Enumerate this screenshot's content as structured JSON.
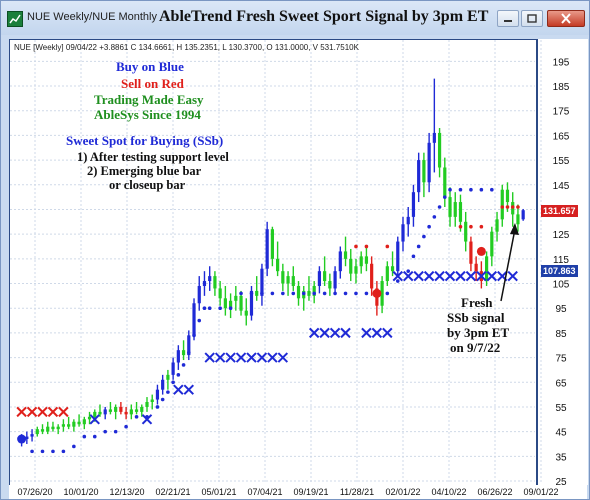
{
  "window": {
    "tab_title": "NUE Weekly/NUE Monthly",
    "chart_title": "AbleTrend Fresh Sweet Sport Signal by 3pm ET"
  },
  "ohlc_readout": "NUE [Weekly] 09/04/22 +3.8861 C 134.6661, H 135.2351, L 130.3700, O 131.0000, V 531.7510K",
  "legend": {
    "buy": "Buy on Blue",
    "sell": "Sell on Red",
    "tagline": "Trading Made Easy",
    "since": "AbleSys Since 1994",
    "buy_color": "#1f2ad6",
    "sell_color": "#e0201b",
    "green_color": "#1f8f1f"
  },
  "notes": {
    "heading": "Sweet Spot for Buying (SSb)",
    "line1": "1) After testing support level",
    "line2": "2) Emerging blue bar",
    "line3": "or closeup bar"
  },
  "annotation": {
    "line1": "Fresh",
    "line2": "SSb signal",
    "line3": "by 3pm ET",
    "line4": "on 9/7/22"
  },
  "price_tags": [
    {
      "value": "131.657",
      "color": "#d62020"
    },
    {
      "value": "107.863",
      "color": "#1f3fa8"
    }
  ],
  "chart_data": {
    "type": "bar",
    "title": "AbleTrend Fresh Sweet Sport Signal by 3pm ET",
    "ylim": [
      25,
      200
    ],
    "y_ticks": [
      195,
      185,
      175,
      165,
      155,
      145,
      135,
      125,
      115,
      105,
      95,
      85,
      75,
      65,
      55,
      45,
      35,
      25
    ],
    "x_ticks": [
      "07/26/20",
      "10/01/20",
      "12/13/20",
      "02/21/21",
      "05/01/21",
      "07/04/21",
      "09/19/21",
      "11/28/21",
      "02/01/22",
      "04/10/22",
      "06/26/22",
      "09/01/22"
    ],
    "grid": true,
    "series_colors": {
      "blue": "#1f2ad6",
      "red": "#e0201b",
      "green": "#22cc22"
    },
    "bars": [
      {
        "i": 0,
        "o": 41,
        "h": 44,
        "l": 39,
        "c": 42,
        "col": "blue"
      },
      {
        "i": 1,
        "o": 42,
        "h": 45,
        "l": 40,
        "c": 43,
        "col": "blue"
      },
      {
        "i": 2,
        "o": 43,
        "h": 46,
        "l": 41,
        "c": 44,
        "col": "blue"
      },
      {
        "i": 3,
        "o": 44,
        "h": 47,
        "l": 43,
        "c": 46,
        "col": "green"
      },
      {
        "i": 4,
        "o": 46,
        "h": 48,
        "l": 44,
        "c": 45,
        "col": "green"
      },
      {
        "i": 5,
        "o": 45,
        "h": 49,
        "l": 44,
        "c": 47,
        "col": "green"
      },
      {
        "i": 6,
        "o": 47,
        "h": 49,
        "l": 45,
        "c": 46,
        "col": "green"
      },
      {
        "i": 7,
        "o": 46,
        "h": 48,
        "l": 44,
        "c": 47,
        "col": "green"
      },
      {
        "i": 8,
        "o": 47,
        "h": 50,
        "l": 45,
        "c": 48,
        "col": "green"
      },
      {
        "i": 9,
        "o": 48,
        "h": 51,
        "l": 46,
        "c": 47,
        "col": "green"
      },
      {
        "i": 10,
        "o": 47,
        "h": 50,
        "l": 45,
        "c": 49,
        "col": "green"
      },
      {
        "i": 11,
        "o": 49,
        "h": 52,
        "l": 47,
        "c": 48,
        "col": "green"
      },
      {
        "i": 12,
        "o": 48,
        "h": 51,
        "l": 46,
        "c": 50,
        "col": "green"
      },
      {
        "i": 13,
        "o": 50,
        "h": 53,
        "l": 48,
        "c": 51,
        "col": "green"
      },
      {
        "i": 14,
        "o": 51,
        "h": 54,
        "l": 49,
        "c": 53,
        "col": "green"
      },
      {
        "i": 15,
        "o": 53,
        "h": 56,
        "l": 51,
        "c": 52,
        "col": "green"
      },
      {
        "i": 16,
        "o": 52,
        "h": 55,
        "l": 50,
        "c": 54,
        "col": "blue"
      },
      {
        "i": 17,
        "o": 54,
        "h": 57,
        "l": 52,
        "c": 53,
        "col": "green"
      },
      {
        "i": 18,
        "o": 53,
        "h": 56,
        "l": 50,
        "c": 55,
        "col": "green"
      },
      {
        "i": 19,
        "o": 55,
        "h": 57,
        "l": 52,
        "c": 53,
        "col": "red"
      },
      {
        "i": 20,
        "o": 53,
        "h": 55,
        "l": 50,
        "c": 52,
        "col": "red"
      },
      {
        "i": 21,
        "o": 52,
        "h": 56,
        "l": 50,
        "c": 54,
        "col": "green"
      },
      {
        "i": 22,
        "o": 54,
        "h": 57,
        "l": 52,
        "c": 53,
        "col": "green"
      },
      {
        "i": 23,
        "o": 53,
        "h": 56,
        "l": 51,
        "c": 55,
        "col": "green"
      },
      {
        "i": 24,
        "o": 55,
        "h": 59,
        "l": 53,
        "c": 57,
        "col": "green"
      },
      {
        "i": 25,
        "o": 57,
        "h": 60,
        "l": 54,
        "c": 58,
        "col": "green"
      },
      {
        "i": 26,
        "o": 58,
        "h": 64,
        "l": 56,
        "c": 62,
        "col": "blue"
      },
      {
        "i": 27,
        "o": 62,
        "h": 68,
        "l": 60,
        "c": 66,
        "col": "blue"
      },
      {
        "i": 28,
        "o": 66,
        "h": 70,
        "l": 62,
        "c": 68,
        "col": "green"
      },
      {
        "i": 29,
        "o": 68,
        "h": 75,
        "l": 66,
        "c": 73,
        "col": "blue"
      },
      {
        "i": 30,
        "o": 73,
        "h": 80,
        "l": 70,
        "c": 78,
        "col": "blue"
      },
      {
        "i": 31,
        "o": 78,
        "h": 82,
        "l": 74,
        "c": 76,
        "col": "green"
      },
      {
        "i": 32,
        "o": 76,
        "h": 86,
        "l": 74,
        "c": 84,
        "col": "blue"
      },
      {
        "i": 33,
        "o": 84,
        "h": 99,
        "l": 82,
        "c": 97,
        "col": "blue"
      },
      {
        "i": 34,
        "o": 97,
        "h": 108,
        "l": 94,
        "c": 104,
        "col": "blue"
      },
      {
        "i": 35,
        "o": 104,
        "h": 110,
        "l": 100,
        "c": 106,
        "col": "blue"
      },
      {
        "i": 36,
        "o": 106,
        "h": 112,
        "l": 102,
        "c": 108,
        "col": "blue"
      },
      {
        "i": 37,
        "o": 108,
        "h": 110,
        "l": 100,
        "c": 103,
        "col": "green"
      },
      {
        "i": 38,
        "o": 103,
        "h": 106,
        "l": 96,
        "c": 99,
        "col": "green"
      },
      {
        "i": 39,
        "o": 99,
        "h": 104,
        "l": 92,
        "c": 95,
        "col": "green"
      },
      {
        "i": 40,
        "o": 95,
        "h": 101,
        "l": 91,
        "c": 98,
        "col": "green"
      },
      {
        "i": 41,
        "o": 98,
        "h": 104,
        "l": 94,
        "c": 100,
        "col": "green"
      },
      {
        "i": 42,
        "o": 100,
        "h": 102,
        "l": 92,
        "c": 94,
        "col": "green"
      },
      {
        "i": 43,
        "o": 94,
        "h": 99,
        "l": 88,
        "c": 92,
        "col": "green"
      },
      {
        "i": 44,
        "o": 92,
        "h": 104,
        "l": 90,
        "c": 102,
        "col": "blue"
      },
      {
        "i": 45,
        "o": 102,
        "h": 108,
        "l": 98,
        "c": 100,
        "col": "green"
      },
      {
        "i": 46,
        "o": 100,
        "h": 113,
        "l": 96,
        "c": 111,
        "col": "blue"
      },
      {
        "i": 47,
        "o": 111,
        "h": 130,
        "l": 108,
        "c": 127,
        "col": "blue"
      },
      {
        "i": 48,
        "o": 127,
        "h": 128,
        "l": 112,
        "c": 115,
        "col": "green"
      },
      {
        "i": 49,
        "o": 115,
        "h": 122,
        "l": 108,
        "c": 110,
        "col": "green"
      },
      {
        "i": 50,
        "o": 110,
        "h": 113,
        "l": 102,
        "c": 105,
        "col": "green"
      },
      {
        "i": 51,
        "o": 105,
        "h": 110,
        "l": 100,
        "c": 108,
        "col": "green"
      },
      {
        "i": 52,
        "o": 108,
        "h": 112,
        "l": 102,
        "c": 104,
        "col": "green"
      },
      {
        "i": 53,
        "o": 104,
        "h": 106,
        "l": 96,
        "c": 99,
        "col": "green"
      },
      {
        "i": 54,
        "o": 99,
        "h": 104,
        "l": 94,
        "c": 102,
        "col": "green"
      },
      {
        "i": 55,
        "o": 102,
        "h": 108,
        "l": 98,
        "c": 100,
        "col": "green"
      },
      {
        "i": 56,
        "o": 100,
        "h": 106,
        "l": 97,
        "c": 104,
        "col": "green"
      },
      {
        "i": 57,
        "o": 104,
        "h": 112,
        "l": 101,
        "c": 110,
        "col": "blue"
      },
      {
        "i": 58,
        "o": 110,
        "h": 116,
        "l": 104,
        "c": 106,
        "col": "green"
      },
      {
        "i": 59,
        "o": 106,
        "h": 109,
        "l": 100,
        "c": 103,
        "col": "green"
      },
      {
        "i": 60,
        "o": 103,
        "h": 112,
        "l": 101,
        "c": 110,
        "col": "blue"
      },
      {
        "i": 61,
        "o": 110,
        "h": 120,
        "l": 107,
        "c": 118,
        "col": "blue"
      },
      {
        "i": 62,
        "o": 118,
        "h": 124,
        "l": 112,
        "c": 115,
        "col": "green"
      },
      {
        "i": 63,
        "o": 115,
        "h": 119,
        "l": 106,
        "c": 109,
        "col": "green"
      },
      {
        "i": 64,
        "o": 109,
        "h": 115,
        "l": 105,
        "c": 112,
        "col": "green"
      },
      {
        "i": 65,
        "o": 112,
        "h": 118,
        "l": 109,
        "c": 116,
        "col": "green"
      },
      {
        "i": 66,
        "o": 116,
        "h": 120,
        "l": 110,
        "c": 113,
        "col": "green"
      },
      {
        "i": 67,
        "o": 113,
        "h": 116,
        "l": 100,
        "c": 103,
        "col": "red"
      },
      {
        "i": 68,
        "o": 103,
        "h": 106,
        "l": 92,
        "c": 96,
        "col": "red"
      },
      {
        "i": 69,
        "o": 96,
        "h": 108,
        "l": 93,
        "c": 106,
        "col": "green"
      },
      {
        "i": 70,
        "o": 106,
        "h": 114,
        "l": 104,
        "c": 112,
        "col": "green"
      },
      {
        "i": 71,
        "o": 112,
        "h": 118,
        "l": 108,
        "c": 110,
        "col": "green"
      },
      {
        "i": 72,
        "o": 110,
        "h": 124,
        "l": 108,
        "c": 122,
        "col": "blue"
      },
      {
        "i": 73,
        "o": 122,
        "h": 132,
        "l": 118,
        "c": 129,
        "col": "blue"
      },
      {
        "i": 74,
        "o": 129,
        "h": 136,
        "l": 124,
        "c": 132,
        "col": "blue"
      },
      {
        "i": 75,
        "o": 132,
        "h": 145,
        "l": 128,
        "c": 142,
        "col": "blue"
      },
      {
        "i": 76,
        "o": 142,
        "h": 158,
        "l": 138,
        "c": 155,
        "col": "blue"
      },
      {
        "i": 77,
        "o": 155,
        "h": 158,
        "l": 140,
        "c": 146,
        "col": "green"
      },
      {
        "i": 78,
        "o": 146,
        "h": 166,
        "l": 142,
        "c": 162,
        "col": "blue"
      },
      {
        "i": 79,
        "o": 162,
        "h": 188,
        "l": 150,
        "c": 166,
        "col": "blue"
      },
      {
        "i": 80,
        "o": 166,
        "h": 168,
        "l": 148,
        "c": 152,
        "col": "green"
      },
      {
        "i": 81,
        "o": 152,
        "h": 156,
        "l": 136,
        "c": 140,
        "col": "green"
      },
      {
        "i": 82,
        "o": 140,
        "h": 144,
        "l": 128,
        "c": 132,
        "col": "green"
      },
      {
        "i": 83,
        "o": 132,
        "h": 142,
        "l": 128,
        "c": 138,
        "col": "green"
      },
      {
        "i": 84,
        "o": 138,
        "h": 141,
        "l": 126,
        "c": 130,
        "col": "green"
      },
      {
        "i": 85,
        "o": 130,
        "h": 134,
        "l": 118,
        "c": 122,
        "col": "green"
      },
      {
        "i": 86,
        "o": 122,
        "h": 124,
        "l": 110,
        "c": 113,
        "col": "red"
      },
      {
        "i": 87,
        "o": 113,
        "h": 116,
        "l": 106,
        "c": 110,
        "col": "red"
      },
      {
        "i": 88,
        "o": 110,
        "h": 114,
        "l": 103,
        "c": 106,
        "col": "red"
      },
      {
        "i": 89,
        "o": 106,
        "h": 118,
        "l": 104,
        "c": 116,
        "col": "green"
      },
      {
        "i": 90,
        "o": 116,
        "h": 128,
        "l": 112,
        "c": 126,
        "col": "green"
      },
      {
        "i": 91,
        "o": 126,
        "h": 134,
        "l": 122,
        "c": 131,
        "col": "green"
      },
      {
        "i": 92,
        "o": 131,
        "h": 145,
        "l": 128,
        "c": 143,
        "col": "green"
      },
      {
        "i": 93,
        "o": 143,
        "h": 146,
        "l": 134,
        "c": 138,
        "col": "green"
      },
      {
        "i": 94,
        "o": 138,
        "h": 142,
        "l": 128,
        "c": 133,
        "col": "green"
      },
      {
        "i": 95,
        "o": 133,
        "h": 137,
        "l": 126,
        "c": 129,
        "col": "green"
      },
      {
        "i": 96,
        "o": 131,
        "h": 135.2,
        "l": 130.4,
        "c": 134.7,
        "col": "blue"
      }
    ],
    "buy_dots": [
      [
        2,
        37
      ],
      [
        4,
        37
      ],
      [
        6,
        37
      ],
      [
        8,
        37
      ],
      [
        10,
        39
      ],
      [
        12,
        43
      ],
      [
        14,
        43
      ],
      [
        16,
        45
      ],
      [
        18,
        45
      ],
      [
        20,
        47
      ],
      [
        22,
        51
      ],
      [
        24,
        51
      ],
      [
        26,
        55
      ],
      [
        27,
        58
      ],
      [
        28,
        61
      ],
      [
        29,
        65
      ],
      [
        30,
        68
      ],
      [
        31,
        72
      ],
      [
        32,
        77
      ],
      [
        33,
        84
      ],
      [
        34,
        90
      ],
      [
        35,
        95
      ],
      [
        36,
        95
      ],
      [
        38,
        95
      ],
      [
        40,
        95
      ],
      [
        42,
        101
      ],
      [
        44,
        101
      ],
      [
        46,
        101
      ],
      [
        48,
        101
      ],
      [
        50,
        101
      ],
      [
        52,
        101
      ],
      [
        54,
        101
      ],
      [
        56,
        101
      ],
      [
        58,
        101
      ],
      [
        60,
        101
      ],
      [
        62,
        101
      ],
      [
        64,
        101
      ],
      [
        66,
        101
      ],
      [
        70,
        101
      ],
      [
        72,
        106
      ],
      [
        74,
        110
      ],
      [
        75,
        116
      ],
      [
        76,
        120
      ],
      [
        77,
        124
      ],
      [
        78,
        128
      ],
      [
        79,
        132
      ],
      [
        80,
        136
      ],
      [
        81,
        140
      ],
      [
        82,
        143
      ],
      [
        84,
        143
      ],
      [
        86,
        143
      ],
      [
        88,
        143
      ],
      [
        90,
        143
      ]
    ],
    "sell_dots": [
      [
        64,
        120
      ],
      [
        66,
        120
      ],
      [
        70,
        120
      ],
      [
        84,
        128
      ],
      [
        86,
        128
      ],
      [
        88,
        128
      ],
      [
        92,
        136
      ],
      [
        93,
        136
      ],
      [
        94,
        136
      ],
      [
        95,
        136
      ]
    ],
    "sell_x": [
      [
        0,
        53
      ],
      [
        2,
        53
      ],
      [
        4,
        53
      ],
      [
        6,
        53
      ],
      [
        8,
        53
      ]
    ],
    "buy_x": [
      [
        14,
        50
      ],
      [
        24,
        50
      ],
      [
        30,
        62
      ],
      [
        32,
        62
      ],
      [
        36,
        75
      ],
      [
        38,
        75
      ],
      [
        40,
        75
      ],
      [
        42,
        75
      ],
      [
        44,
        75
      ],
      [
        46,
        75
      ],
      [
        48,
        75
      ],
      [
        50,
        75
      ],
      [
        56,
        85
      ],
      [
        58,
        85
      ],
      [
        60,
        85
      ],
      [
        62,
        85
      ],
      [
        66,
        85
      ],
      [
        68,
        85
      ],
      [
        70,
        85
      ],
      [
        72,
        108
      ],
      [
        74,
        108
      ],
      [
        76,
        108
      ],
      [
        78,
        108
      ],
      [
        80,
        108
      ],
      [
        82,
        108
      ],
      [
        84,
        108
      ],
      [
        86,
        108
      ],
      [
        88,
        108
      ],
      [
        90,
        108
      ],
      [
        92,
        108
      ],
      [
        94,
        108
      ]
    ],
    "large_dots": [
      [
        0,
        42,
        "blue"
      ],
      [
        68,
        101,
        "red"
      ],
      [
        88,
        118,
        "red"
      ]
    ]
  }
}
